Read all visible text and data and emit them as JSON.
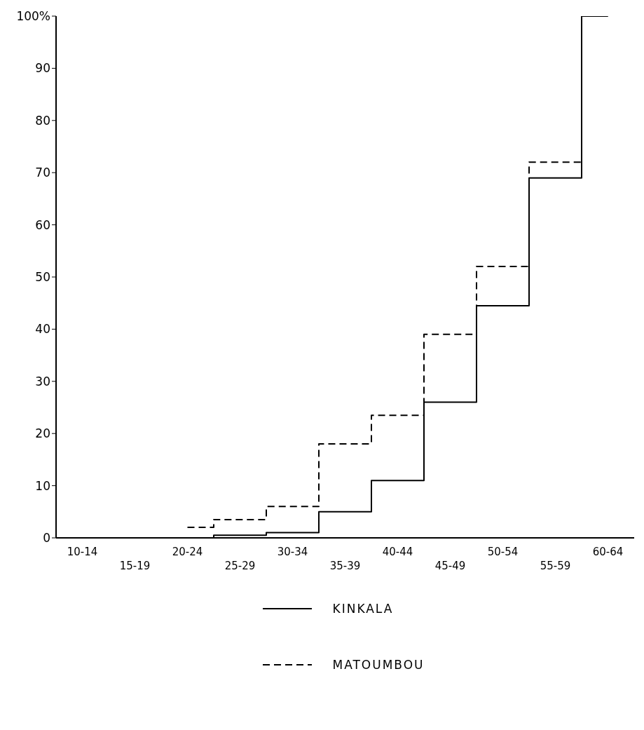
{
  "chart_data": {
    "type": "step",
    "categories": [
      "10-14",
      "15-19",
      "20-24",
      "25-29",
      "30-34",
      "35-39",
      "40-44",
      "45-49",
      "50-54",
      "55-59",
      "60-64"
    ],
    "series": [
      {
        "name": "KINKALA",
        "color": "#000000",
        "line_style": "solid",
        "values": [
          0,
          0,
          0,
          0.5,
          1,
          5,
          11,
          26,
          44.5,
          69,
          100
        ]
      },
      {
        "name": "MATOUMBOU",
        "color": "#000000",
        "line_style": "dashed",
        "values": [
          null,
          null,
          2,
          3.5,
          6,
          18,
          23.5,
          39,
          52,
          72,
          100
        ]
      }
    ],
    "ylim": [
      0,
      100
    ],
    "yticks": [
      0,
      10,
      20,
      30,
      40,
      50,
      60,
      70,
      80,
      90,
      {
        "value": 100,
        "label": "100%"
      }
    ],
    "grid": false,
    "legend": "bottom",
    "marker": "none"
  }
}
